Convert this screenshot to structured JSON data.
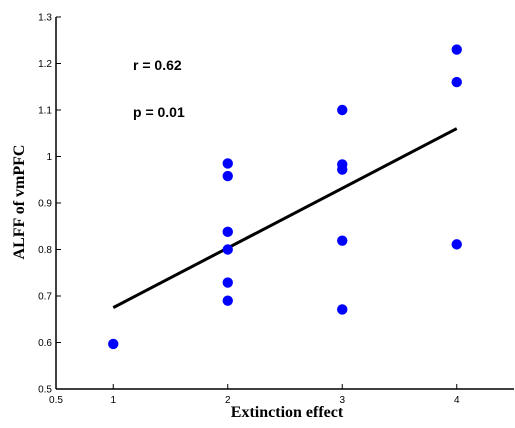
{
  "chart_data": {
    "type": "scatter",
    "title": "",
    "xlabel": "Extinction effect",
    "ylabel": "ALFF of vmPFC",
    "xlim": [
      0.5,
      4.5
    ],
    "ylim": [
      0.5,
      1.3
    ],
    "x_ticks": [
      0.5,
      1,
      2,
      3,
      4
    ],
    "x_tick_labels": [
      "0.5",
      "1",
      "2",
      "3",
      "4"
    ],
    "y_ticks": [
      0.5,
      0.6,
      0.7,
      0.8,
      0.9,
      1.0,
      1.1,
      1.2,
      1.3
    ],
    "y_tick_labels": [
      "0.5",
      "0.6",
      "0.7",
      "0.8",
      "0.9",
      "1",
      "1.1",
      "1.2",
      "1.3"
    ],
    "grid": false,
    "marker_color": "#0000ff",
    "line_color": "#000000",
    "points": [
      {
        "x": 1,
        "y": 0.597
      },
      {
        "x": 2,
        "y": 0.985
      },
      {
        "x": 2,
        "y": 0.958
      },
      {
        "x": 2,
        "y": 0.838
      },
      {
        "x": 2,
        "y": 0.8
      },
      {
        "x": 2,
        "y": 0.729
      },
      {
        "x": 2,
        "y": 0.69
      },
      {
        "x": 3,
        "y": 1.1
      },
      {
        "x": 3,
        "y": 0.983
      },
      {
        "x": 3,
        "y": 0.972
      },
      {
        "x": 3,
        "y": 0.819
      },
      {
        "x": 3,
        "y": 0.671
      },
      {
        "x": 4,
        "y": 1.23
      },
      {
        "x": 4,
        "y": 1.16
      },
      {
        "x": 4,
        "y": 0.811
      }
    ],
    "fit_line": [
      {
        "x": 1,
        "y": 0.675
      },
      {
        "x": 4,
        "y": 1.06
      }
    ],
    "annotations": {
      "r_text": "r = 0.62",
      "p_text": "p = 0.01"
    }
  }
}
